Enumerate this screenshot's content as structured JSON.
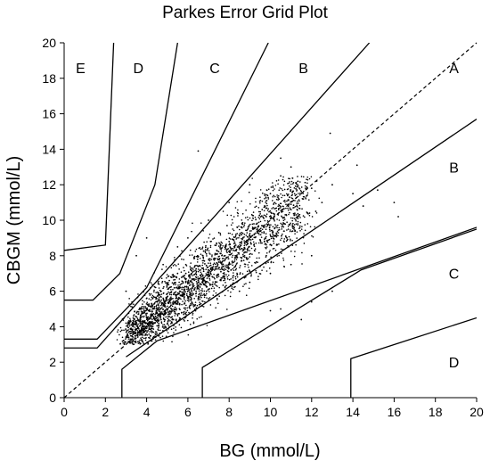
{
  "chart_data": {
    "type": "scatter",
    "title": "Parkes Error Grid Plot",
    "xlabel": "BG (mmol/L)",
    "ylabel": "CBGM (mmol/L)",
    "xlim": [
      0,
      20
    ],
    "ylim": [
      0,
      20
    ],
    "xticks": [
      "0",
      "2",
      "4",
      "6",
      "8",
      "10",
      "12",
      "14",
      "16",
      "18",
      "20"
    ],
    "yticks": [
      "0",
      "2",
      "4",
      "6",
      "8",
      "10",
      "12",
      "14",
      "16",
      "18",
      "20"
    ],
    "grid": false,
    "identity_line": {
      "style": "dashed",
      "from": [
        0,
        0
      ],
      "to": [
        20,
        20
      ]
    },
    "zone_boundaries": [
      {
        "zone_edge": "A-B upper",
        "points": [
          [
            0,
            2.8
          ],
          [
            1.6,
            2.8
          ],
          [
            14.8,
            20
          ]
        ]
      },
      {
        "zone_edge": "B-C upper",
        "points": [
          [
            0,
            3.3
          ],
          [
            1.6,
            3.3
          ],
          [
            4.0,
            6.2
          ],
          [
            9.9,
            20
          ]
        ]
      },
      {
        "zone_edge": "C-D upper",
        "points": [
          [
            0,
            5.5
          ],
          [
            1.4,
            5.5
          ],
          [
            2.7,
            7.0
          ],
          [
            4.4,
            12.0
          ],
          [
            5.5,
            20
          ]
        ]
      },
      {
        "zone_edge": "D-E upper",
        "points": [
          [
            0,
            8.3
          ],
          [
            2.0,
            8.6
          ],
          [
            2.4,
            20
          ]
        ]
      },
      {
        "zone_edge": "A-B lower",
        "points": [
          [
            3.0,
            2.3
          ],
          [
            20,
            15.7
          ]
        ]
      },
      {
        "zone_edge": "B-C lower",
        "points": [
          [
            2.8,
            0
          ],
          [
            2.8,
            1.6
          ],
          [
            4.5,
            3.2
          ],
          [
            20,
            9.6
          ]
        ]
      },
      {
        "zone_edge": "C-D lower",
        "points": [
          [
            6.7,
            0
          ],
          [
            6.7,
            1.7
          ],
          [
            14.4,
            7.2
          ],
          [
            20,
            9.5
          ]
        ]
      },
      {
        "zone_edge": "D-E lower",
        "points": [
          [
            13.9,
            0
          ],
          [
            13.9,
            2.2
          ],
          [
            20,
            4.5
          ]
        ]
      }
    ],
    "zone_labels": [
      {
        "text": "E",
        "x": 0.8,
        "y": 18.6
      },
      {
        "text": "D",
        "x": 3.6,
        "y": 18.6
      },
      {
        "text": "C",
        "x": 7.3,
        "y": 18.6
      },
      {
        "text": "B",
        "x": 11.6,
        "y": 18.6
      },
      {
        "text": "A",
        "x": 18.9,
        "y": 18.6
      },
      {
        "text": "B",
        "x": 18.9,
        "y": 13.0
      },
      {
        "text": "C",
        "x": 18.9,
        "y": 7.0
      },
      {
        "text": "D",
        "x": 18.9,
        "y": 2.0
      }
    ],
    "series": [
      {
        "values": [
          [
            3.5,
            4.1
          ],
          [
            3.8,
            4.3
          ],
          [
            4.0,
            3.9
          ],
          [
            4.2,
            4.6
          ],
          [
            4.4,
            4.2
          ],
          [
            4.6,
            5.1
          ],
          [
            4.8,
            4.7
          ],
          [
            5.0,
            5.5
          ],
          [
            5.2,
            5.0
          ],
          [
            5.4,
            5.8
          ],
          [
            5.6,
            5.3
          ],
          [
            5.8,
            6.2
          ],
          [
            6.0,
            5.7
          ],
          [
            6.2,
            6.5
          ],
          [
            6.4,
            6.0
          ],
          [
            6.6,
            6.9
          ],
          [
            6.8,
            6.4
          ],
          [
            7.0,
            7.2
          ],
          [
            7.2,
            6.8
          ],
          [
            7.4,
            7.6
          ],
          [
            7.6,
            7.1
          ],
          [
            7.8,
            8.0
          ],
          [
            8.0,
            7.5
          ],
          [
            8.2,
            8.3
          ],
          [
            8.4,
            7.9
          ],
          [
            8.6,
            8.7
          ],
          [
            8.8,
            8.2
          ],
          [
            9.0,
            9.1
          ],
          [
            9.2,
            8.6
          ],
          [
            9.4,
            9.4
          ],
          [
            4.3,
            5.6
          ],
          [
            4.7,
            6.0
          ],
          [
            5.1,
            6.6
          ],
          [
            5.5,
            7.0
          ],
          [
            5.9,
            7.5
          ],
          [
            6.3,
            7.9
          ],
          [
            6.7,
            8.4
          ],
          [
            7.1,
            8.8
          ],
          [
            7.5,
            9.3
          ],
          [
            7.9,
            9.7
          ],
          [
            4.5,
            3.6
          ],
          [
            4.9,
            4.0
          ],
          [
            5.3,
            4.4
          ],
          [
            5.7,
            4.8
          ],
          [
            6.1,
            5.2
          ],
          [
            6.5,
            5.6
          ],
          [
            6.9,
            6.0
          ],
          [
            7.3,
            6.4
          ],
          [
            7.7,
            6.8
          ],
          [
            8.1,
            7.2
          ],
          [
            2.8,
            3.8
          ],
          [
            3.0,
            4.2
          ],
          [
            3.2,
            3.6
          ],
          [
            3.4,
            4.4
          ],
          [
            3.6,
            3.9
          ],
          [
            3.9,
            4.8
          ],
          [
            4.1,
            5.2
          ],
          [
            4.3,
            4.0
          ],
          [
            4.5,
            5.4
          ],
          [
            4.7,
            4.4
          ],
          [
            5.0,
            6.4
          ],
          [
            5.3,
            6.8
          ],
          [
            5.6,
            6.0
          ],
          [
            5.9,
            7.0
          ],
          [
            6.2,
            7.3
          ],
          [
            6.5,
            6.3
          ],
          [
            6.8,
            7.7
          ],
          [
            7.1,
            7.0
          ],
          [
            7.4,
            8.3
          ],
          [
            7.7,
            7.4
          ],
          [
            8.0,
            8.8
          ],
          [
            8.3,
            8.0
          ],
          [
            8.6,
            9.3
          ],
          [
            8.9,
            8.4
          ],
          [
            9.2,
            9.8
          ],
          [
            9.5,
            8.9
          ],
          [
            9.8,
            10.2
          ],
          [
            10.1,
            9.3
          ],
          [
            10.4,
            10.6
          ],
          [
            10.7,
            9.8
          ],
          [
            11.0,
            10.9
          ],
          [
            11.3,
            10.2
          ],
          [
            11.6,
            11.2
          ],
          [
            11.9,
            10.4
          ],
          [
            12.2,
            10.5
          ],
          [
            12.5,
            11.0
          ],
          [
            10.0,
            11.5
          ],
          [
            9.0,
            12.0
          ],
          [
            8.0,
            11.0
          ],
          [
            7.0,
            10.0
          ],
          [
            6.0,
            9.0
          ],
          [
            5.5,
            8.5
          ],
          [
            4.8,
            7.5
          ],
          [
            10.5,
            12.5
          ],
          [
            11.0,
            13.0
          ],
          [
            10.5,
            13.5
          ],
          [
            6.5,
            13.9
          ],
          [
            4.0,
            9.0
          ],
          [
            3.5,
            8.0
          ],
          [
            3.0,
            6.0
          ],
          [
            12.0,
            11.8
          ],
          [
            13.0,
            12.0
          ],
          [
            14.0,
            11.5
          ],
          [
            14.5,
            10.8
          ],
          [
            15.2,
            11.7
          ],
          [
            16.0,
            11.0
          ],
          [
            16.2,
            10.2
          ],
          [
            14.2,
            13.1
          ],
          [
            12.9,
            14.9
          ],
          [
            11.8,
            10.4
          ],
          [
            10.0,
            7.0
          ],
          [
            9.0,
            6.5
          ],
          [
            8.5,
            6.0
          ],
          [
            11.0,
            7.5
          ],
          [
            12.0,
            8.0
          ],
          [
            10.5,
            5.0
          ],
          [
            13.0,
            6.0
          ],
          [
            11.5,
            4.4
          ],
          [
            10.0,
            4.9
          ],
          [
            12.0,
            5.4
          ],
          [
            9.5,
            7.4
          ],
          [
            8.8,
            6.8
          ],
          [
            9.8,
            8.0
          ],
          [
            10.3,
            8.6
          ],
          [
            10.8,
            9.0
          ],
          [
            11.2,
            9.4
          ],
          [
            9.6,
            10.6
          ],
          [
            8.4,
            9.6
          ],
          [
            7.6,
            8.6
          ],
          [
            6.9,
            8.1
          ]
        ]
      }
    ]
  }
}
